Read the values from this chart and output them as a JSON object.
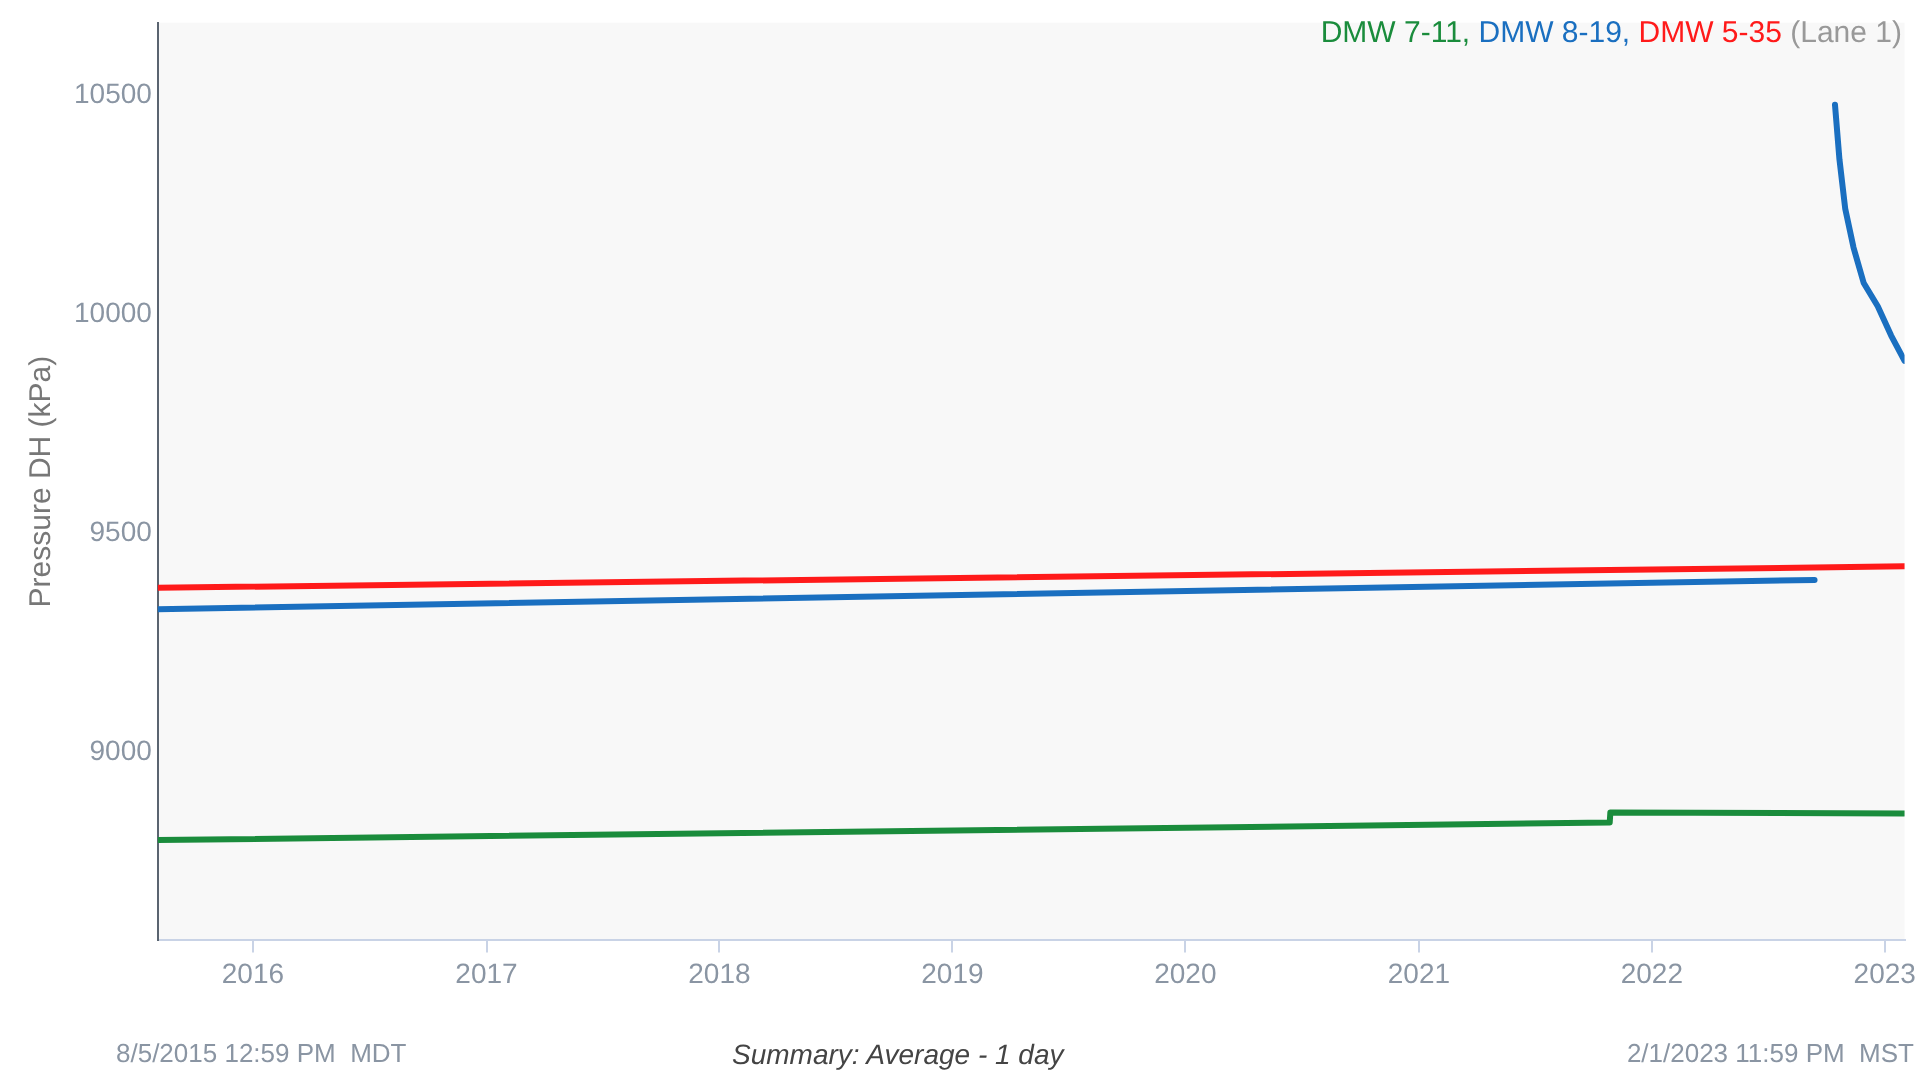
{
  "chart_data": {
    "type": "line",
    "ylabel": "Pressure DH (kPa)",
    "legend_title": "(Lane 1)",
    "xlim": [
      "2015-08-05",
      "2023-02-01"
    ],
    "xticks": [
      "2016",
      "2017",
      "2018",
      "2019",
      "2020",
      "2021",
      "2022",
      "2023"
    ],
    "ylim": [
      8570,
      10665
    ],
    "yticks": [
      9000,
      9500,
      10000,
      10500
    ],
    "grid": false,
    "legend": "top right",
    "marker": "none",
    "line_style": "solid",
    "annotations": [
      "8/5/2015 12:59 PM  MDT",
      "Summary: Average - 1 day",
      "2/1/2023 11:59 PM  MST"
    ],
    "series": [
      {
        "name": "DMW 7-11,",
        "color": "#1a8c3c",
        "x": [
          "2015-08-05",
          "2021-10-27",
          "2021-10-28",
          "2023-02-01"
        ],
        "values": [
          8799,
          8839,
          8862,
          8860
        ]
      },
      {
        "name": "DMW 8-19,",
        "color": "#1a6fc0",
        "x": [
          "2015-08-05",
          "2022-09-13",
          "2022-09-30",
          "2022-10-15",
          "2022-10-22",
          "2022-10-31",
          "2022-11-13",
          "2022-11-29",
          "2022-12-21",
          "2023-01-11",
          "2023-02-01"
        ],
        "values": [
          9326,
          9393,
          null,
          10478,
          10353,
          10241,
          10152,
          10071,
          10018,
          9951,
          9893
        ]
      },
      {
        "name": "DMW 5-35",
        "color": "#ff1a1a",
        "x": [
          "2015-08-05",
          "2023-02-01"
        ],
        "values": [
          9375,
          9424
        ]
      }
    ]
  }
}
